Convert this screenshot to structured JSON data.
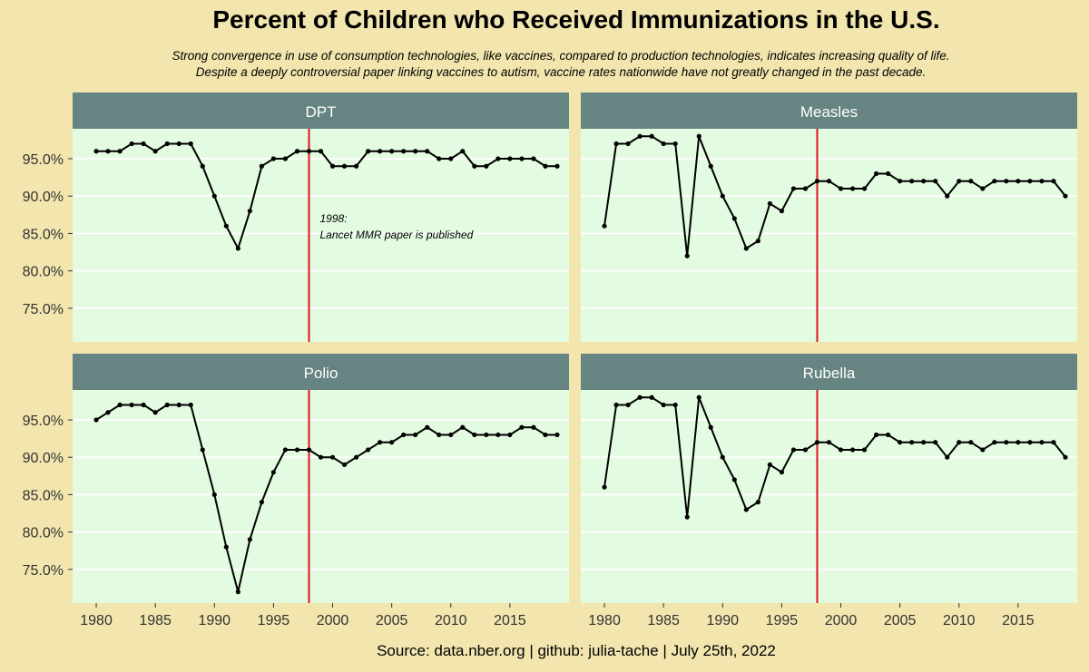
{
  "title": "Percent of Children who Received Immunizations in the U.S.",
  "subtitle_lines": [
    "Strong convergence in use of consumption technologies, like vaccines, compared to production technologies, indicates increasing quality of life.",
    "Despite a deeply controversial paper linking vaccines to autism, vaccine rates nationwide have not greatly changed in the past decade."
  ],
  "caption": "Source: data.nber.org | github: julia-tache | July 25th, 2022",
  "colors": {
    "background": "#f2e6ae",
    "panel": "#e3fbe0",
    "strip": "#668482",
    "strip_text": "#ffffff",
    "line": "#000000",
    "vline": "#e0141a",
    "grid": "#ffffff"
  },
  "chart_data": {
    "type": "line",
    "facets": [
      "DPT",
      "Measles",
      "Polio",
      "Rubella"
    ],
    "x": [
      1980,
      1981,
      1982,
      1983,
      1984,
      1985,
      1986,
      1987,
      1988,
      1989,
      1990,
      1991,
      1992,
      1993,
      1994,
      1995,
      1996,
      1997,
      1998,
      1999,
      2000,
      2001,
      2002,
      2003,
      2004,
      2005,
      2006,
      2007,
      2008,
      2009,
      2010,
      2011,
      2012,
      2013,
      2014,
      2015,
      2016,
      2017,
      2018,
      2019
    ],
    "series": [
      {
        "name": "DPT",
        "values": [
          96,
          96,
          96,
          97,
          97,
          96,
          97,
          97,
          97,
          94,
          90,
          86,
          83,
          88,
          94,
          95,
          95,
          96,
          96,
          96,
          94,
          94,
          94,
          96,
          96,
          96,
          96,
          96,
          96,
          95,
          95,
          96,
          94,
          94,
          95,
          95,
          95,
          95,
          94,
          94
        ]
      },
      {
        "name": "Measles",
        "values": [
          86,
          97,
          97,
          98,
          98,
          97,
          97,
          82,
          98,
          94,
          90,
          87,
          83,
          84,
          89,
          88,
          91,
          91,
          92,
          92,
          91,
          91,
          91,
          93,
          93,
          92,
          92,
          92,
          92,
          90,
          92,
          92,
          91,
          92,
          92,
          92,
          92,
          92,
          92,
          90
        ]
      },
      {
        "name": "Polio",
        "values": [
          95,
          96,
          97,
          97,
          97,
          96,
          97,
          97,
          97,
          91,
          85,
          78,
          72,
          79,
          84,
          88,
          91,
          91,
          91,
          90,
          90,
          89,
          90,
          91,
          92,
          92,
          93,
          93,
          94,
          93,
          93,
          94,
          93,
          93,
          93,
          93,
          94,
          94,
          93,
          93
        ]
      },
      {
        "name": "Rubella",
        "values": [
          86,
          97,
          97,
          98,
          98,
          97,
          97,
          82,
          98,
          94,
          90,
          87,
          83,
          84,
          89,
          88,
          91,
          91,
          92,
          92,
          91,
          91,
          91,
          93,
          93,
          92,
          92,
          92,
          92,
          90,
          92,
          92,
          91,
          92,
          92,
          92,
          92,
          92,
          92,
          90
        ]
      }
    ],
    "vline_x": 1998,
    "annotation": {
      "facet": "DPT",
      "line1": "1998:",
      "line2": "Lancet MMR paper is published",
      "x": 1999,
      "y": 85.8
    },
    "ylim": [
      70.5,
      99
    ],
    "yticks": [
      75,
      80,
      85,
      90,
      95
    ],
    "ytick_labels": [
      "75.0%",
      "80.0%",
      "85.0%",
      "90.0%",
      "95.0%"
    ],
    "xlim": [
      1978,
      2020
    ],
    "xticks": [
      1980,
      1985,
      1990,
      1995,
      2000,
      2005,
      2010,
      2015
    ],
    "xtick_labels": [
      "1980",
      "1985",
      "1990",
      "1995",
      "2000",
      "2005",
      "2010",
      "2015"
    ]
  }
}
